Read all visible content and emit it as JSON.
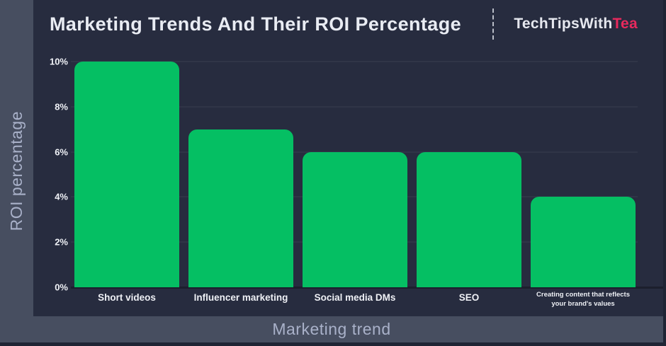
{
  "header": {
    "title": "Marketing Trends And Their ROI Percentage",
    "brand": {
      "prefix": "TechTipsWith",
      "suffix": "Tea"
    }
  },
  "axes": {
    "y_title": "ROI percentage",
    "x_title": "Marketing trend"
  },
  "chart_data": {
    "type": "bar",
    "title": "Marketing Trends And Their ROI Percentage",
    "categories": [
      "Short videos",
      "Influencer marketing",
      "Social media DMs",
      "SEO",
      "Creating content that reflects your brand's values"
    ],
    "values": [
      10,
      7,
      6,
      6,
      4
    ],
    "unit": "%",
    "xlabel": "Marketing trend",
    "ylabel": "ROI percentage",
    "ylim": [
      0,
      10
    ],
    "ytick_labels": [
      "0%",
      "2%",
      "4%",
      "6%",
      "8%",
      "10%"
    ],
    "grid": true,
    "legend": "none",
    "bar_color": "#05bf63"
  },
  "colors": {
    "background": "#272c3f",
    "outer_border": "#1f2434",
    "axis_strip": "#474e60",
    "bar_green": "#05bf63",
    "brand_accent": "#e8295d",
    "title_text": "#e9ecf3",
    "axis_title_text": "#a9b1c9"
  }
}
